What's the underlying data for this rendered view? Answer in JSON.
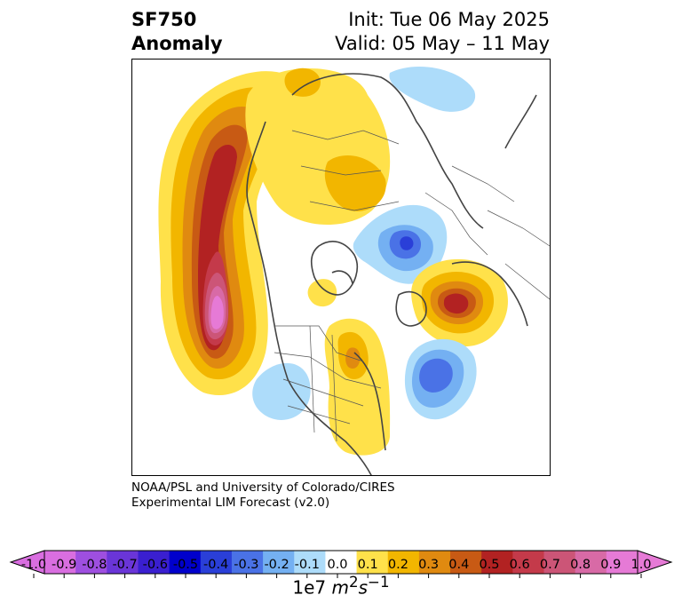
{
  "header": {
    "title_line1": "SF750",
    "title_line2": "Anomaly",
    "init_label": "Init: Tue 06 May 2025",
    "valid_label": "Valid: 05 May – 11 May"
  },
  "credit": {
    "line1": "NOAA/PSL and University of Colorado/CIRES",
    "line2": "Experimental LIM Forecast (v2.0)"
  },
  "colorbar": {
    "unit_base": "1e7 ",
    "unit_m": "m",
    "unit_exp1": "2",
    "unit_s": "s",
    "unit_exp2": "−1",
    "ticks": [
      "-1.0",
      "-0.9",
      "-0.8",
      "-0.7",
      "-0.6",
      "-0.5",
      "-0.4",
      "-0.3",
      "-0.2",
      "-0.1",
      "0.0",
      "0.1",
      "0.2",
      "0.3",
      "0.4",
      "0.5",
      "0.6",
      "0.7",
      "0.8",
      "0.9",
      "1.0"
    ],
    "colors": [
      "#d96ee0",
      "#9e4fe0",
      "#6a35d8",
      "#3a1fd0",
      "#0000cc",
      "#2a3fd8",
      "#4a72e6",
      "#74b0f2",
      "#addcfa",
      "#ffffff",
      "#ffe14a",
      "#f2b600",
      "#e08a10",
      "#c85a14",
      "#b22222",
      "#c43a4a",
      "#cc5577",
      "#d86aa6",
      "#e67ad6"
    ]
  },
  "map": {
    "features": [
      {
        "name": "positive-anomaly-east-pacific",
        "sign": "positive",
        "peak": 1.0
      },
      {
        "name": "positive-anomaly-siberia",
        "sign": "positive",
        "peak": 0.3
      },
      {
        "name": "negative-anomaly-arctic-ocean",
        "sign": "negative",
        "peak": -0.4
      },
      {
        "name": "positive-anomaly-scandinavia",
        "sign": "positive",
        "peak": 0.6
      },
      {
        "name": "negative-anomaly-north-atlantic",
        "sign": "negative",
        "peak": -0.4
      },
      {
        "name": "positive-anomaly-eastern-north-america",
        "sign": "positive",
        "peak": 0.3
      },
      {
        "name": "negative-anomaly-western-us",
        "sign": "negative",
        "peak": -0.2
      },
      {
        "name": "negative-anomaly-north-siberia",
        "sign": "negative",
        "peak": -0.2
      }
    ]
  }
}
